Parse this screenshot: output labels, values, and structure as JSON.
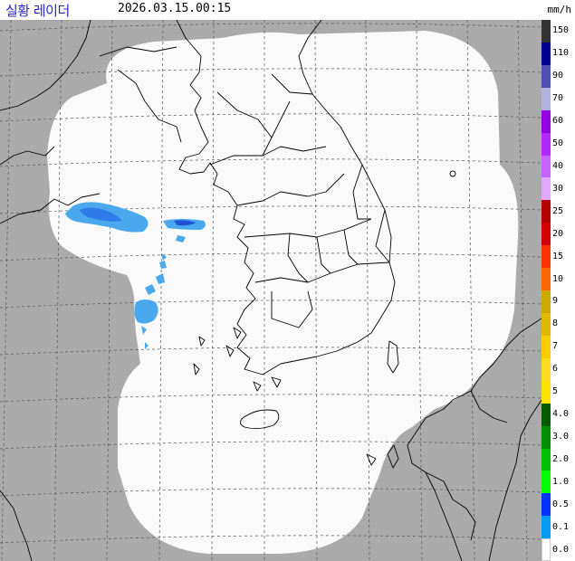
{
  "header": {
    "title": "실황 레이더",
    "timestamp": "2026.03.15.00:15",
    "unit": "mm/h"
  },
  "legend": {
    "levels": [
      {
        "label": "150",
        "color": "#333333"
      },
      {
        "label": "110",
        "color": "#000390"
      },
      {
        "label": "90",
        "color": "#4c4eb1"
      },
      {
        "label": "70",
        "color": "#b3b4de"
      },
      {
        "label": "60",
        "color": "#9300e4"
      },
      {
        "label": "50",
        "color": "#b229ff"
      },
      {
        "label": "40",
        "color": "#c963ff"
      },
      {
        "label": "30",
        "color": "#e0a9ff"
      },
      {
        "label": "25",
        "color": "#b40000"
      },
      {
        "label": "20",
        "color": "#d20000"
      },
      {
        "label": "15",
        "color": "#ff3300"
      },
      {
        "label": "10",
        "color": "#ff6600"
      },
      {
        "label": "9",
        "color": "#ccaa00"
      },
      {
        "label": "8",
        "color": "#e0b900"
      },
      {
        "label": "7",
        "color": "#f9cd00"
      },
      {
        "label": "6",
        "color": "#ffdc1f"
      },
      {
        "label": "5",
        "color": "#ffe100"
      },
      {
        "label": "4.0",
        "color": "#005a00"
      },
      {
        "label": "3.0",
        "color": "#008c00"
      },
      {
        "label": "2.0",
        "color": "#00be00"
      },
      {
        "label": "1.0",
        "color": "#00ff00"
      },
      {
        "label": "0.5",
        "color": "#0033ff"
      },
      {
        "label": "0.1",
        "color": "#009bf5"
      },
      {
        "label": "0.0",
        "color": "#ffffff"
      }
    ]
  },
  "colors": {
    "outside_coverage": "#aaaaaa",
    "inside_coverage": "#fafafa",
    "coastline": "#000000",
    "grid": "#555555",
    "echo_light": "#4aa8ee",
    "echo_medium": "#2f7bea",
    "echo_strong": "#2250d8"
  }
}
